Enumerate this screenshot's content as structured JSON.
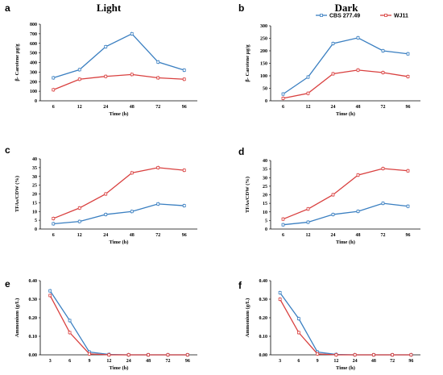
{
  "colors": {
    "CBS 277.49": "#3a7fc1",
    "WJ11": "#d9403f",
    "axis": "#000000",
    "tick_minor": "#cccccc"
  },
  "legend": {
    "placement": "top-right",
    "entries": [
      "CBS 277.49",
      "WJ11"
    ]
  },
  "chart_data": [
    {
      "panel": "a",
      "title": "Light",
      "type": "line",
      "categories": [
        "6",
        "12",
        "24",
        "48",
        "72",
        "96"
      ],
      "xlabel": "Time (h)",
      "ylabel": "β- Carotene μg/g",
      "ylim": [
        0,
        800
      ],
      "yticks": [
        0,
        100,
        200,
        300,
        400,
        500,
        600,
        700,
        800
      ],
      "ytick_labels": [
        "0",
        "100",
        "200",
        "300",
        "400",
        "500",
        "600",
        "700",
        "800"
      ],
      "grid": false,
      "series": [
        {
          "name": "CBS 277.49",
          "values": [
            240,
            325,
            565,
            700,
            405,
            320
          ]
        },
        {
          "name": "WJ11",
          "values": [
            115,
            225,
            255,
            275,
            240,
            225
          ]
        }
      ]
    },
    {
      "panel": "b",
      "title": "Dark",
      "type": "line",
      "categories": [
        "6",
        "12",
        "24",
        "48",
        "72",
        "96"
      ],
      "xlabel": "Time (h)",
      "ylabel": "β- Carotene μg/g",
      "ylim": [
        0,
        300
      ],
      "yticks": [
        0,
        50,
        100,
        150,
        200,
        250,
        300
      ],
      "ytick_labels": [
        "0",
        "50",
        "100",
        "150",
        "200",
        "250",
        "300"
      ],
      "grid": false,
      "series": [
        {
          "name": "CBS 277.49",
          "values": [
            27,
            95,
            229,
            252,
            200,
            188
          ]
        },
        {
          "name": "WJ11",
          "values": [
            10,
            30,
            108,
            123,
            113,
            97
          ]
        }
      ]
    },
    {
      "panel": "c",
      "title": "",
      "type": "line",
      "categories": [
        "6",
        "12",
        "24",
        "48",
        "72",
        "96"
      ],
      "xlabel": "Time (h)",
      "ylabel": "TFAs/CDW (%)",
      "ylim": [
        0,
        40
      ],
      "yticks": [
        0,
        5,
        10,
        15,
        20,
        25,
        30,
        35,
        40
      ],
      "ytick_labels": [
        "0",
        "5",
        "10",
        "15",
        "20",
        "25",
        "30",
        "35",
        "40"
      ],
      "grid": false,
      "series": [
        {
          "name": "CBS 277.49",
          "values": [
            3,
            4.3,
            8.3,
            10,
            14.3,
            13.3
          ]
        },
        {
          "name": "WJ11",
          "values": [
            6,
            12,
            20,
            32,
            35,
            33.5
          ]
        }
      ]
    },
    {
      "panel": "d",
      "title": "",
      "type": "line",
      "categories": [
        "6",
        "12",
        "24",
        "48",
        "72",
        "96"
      ],
      "xlabel": "Time (h)",
      "ylabel": "TFAs/CDW (%)",
      "ylim": [
        0,
        40
      ],
      "yticks": [
        0,
        5,
        10,
        15,
        20,
        25,
        30,
        35,
        40
      ],
      "ytick_labels": [
        "0",
        "5",
        "10",
        "15",
        "20",
        "25",
        "30",
        "35",
        "40"
      ],
      "grid": false,
      "series": [
        {
          "name": "CBS 277.49",
          "values": [
            2.5,
            4,
            8.5,
            10.3,
            15,
            13.3
          ]
        },
        {
          "name": "WJ11",
          "values": [
            5.8,
            11.7,
            20,
            31.5,
            35.3,
            34
          ]
        }
      ]
    },
    {
      "panel": "e",
      "title": "",
      "type": "line",
      "categories": [
        "3",
        "6",
        "9",
        "12",
        "24",
        "48",
        "72",
        "96"
      ],
      "xlabel": "Time (h)",
      "ylabel": "Ammonium (g/L)",
      "ylim": [
        0,
        0.4
      ],
      "yticks": [
        0,
        0.1,
        0.2,
        0.3,
        0.4
      ],
      "ytick_labels": [
        "0.00",
        "0.10",
        "0.20",
        "0.30",
        "0.40"
      ],
      "grid": false,
      "series": [
        {
          "name": "CBS 277.49",
          "values": [
            0.345,
            0.185,
            0.015,
            0.002,
            0,
            0,
            0,
            0
          ]
        },
        {
          "name": "WJ11",
          "values": [
            0.32,
            0.12,
            0.005,
            0,
            0,
            0,
            0,
            0
          ]
        }
      ]
    },
    {
      "panel": "f",
      "title": "",
      "type": "line",
      "categories": [
        "3",
        "6",
        "9",
        "12",
        "24",
        "48",
        "72",
        "96"
      ],
      "xlabel": "Time (h)",
      "ylabel": "Ammonium (g/L)",
      "ylim": [
        0,
        0.4
      ],
      "yticks": [
        0,
        0.1,
        0.2,
        0.3,
        0.4
      ],
      "ytick_labels": [
        "0.00",
        "0.10",
        "0.20",
        "0.30",
        "0.40"
      ],
      "grid": false,
      "series": [
        {
          "name": "CBS 277.49",
          "values": [
            0.335,
            0.195,
            0.015,
            0.002,
            0,
            0,
            0,
            0
          ]
        },
        {
          "name": "WJ11",
          "values": [
            0.3,
            0.12,
            0.005,
            0,
            0,
            0,
            0,
            0
          ]
        }
      ]
    }
  ]
}
